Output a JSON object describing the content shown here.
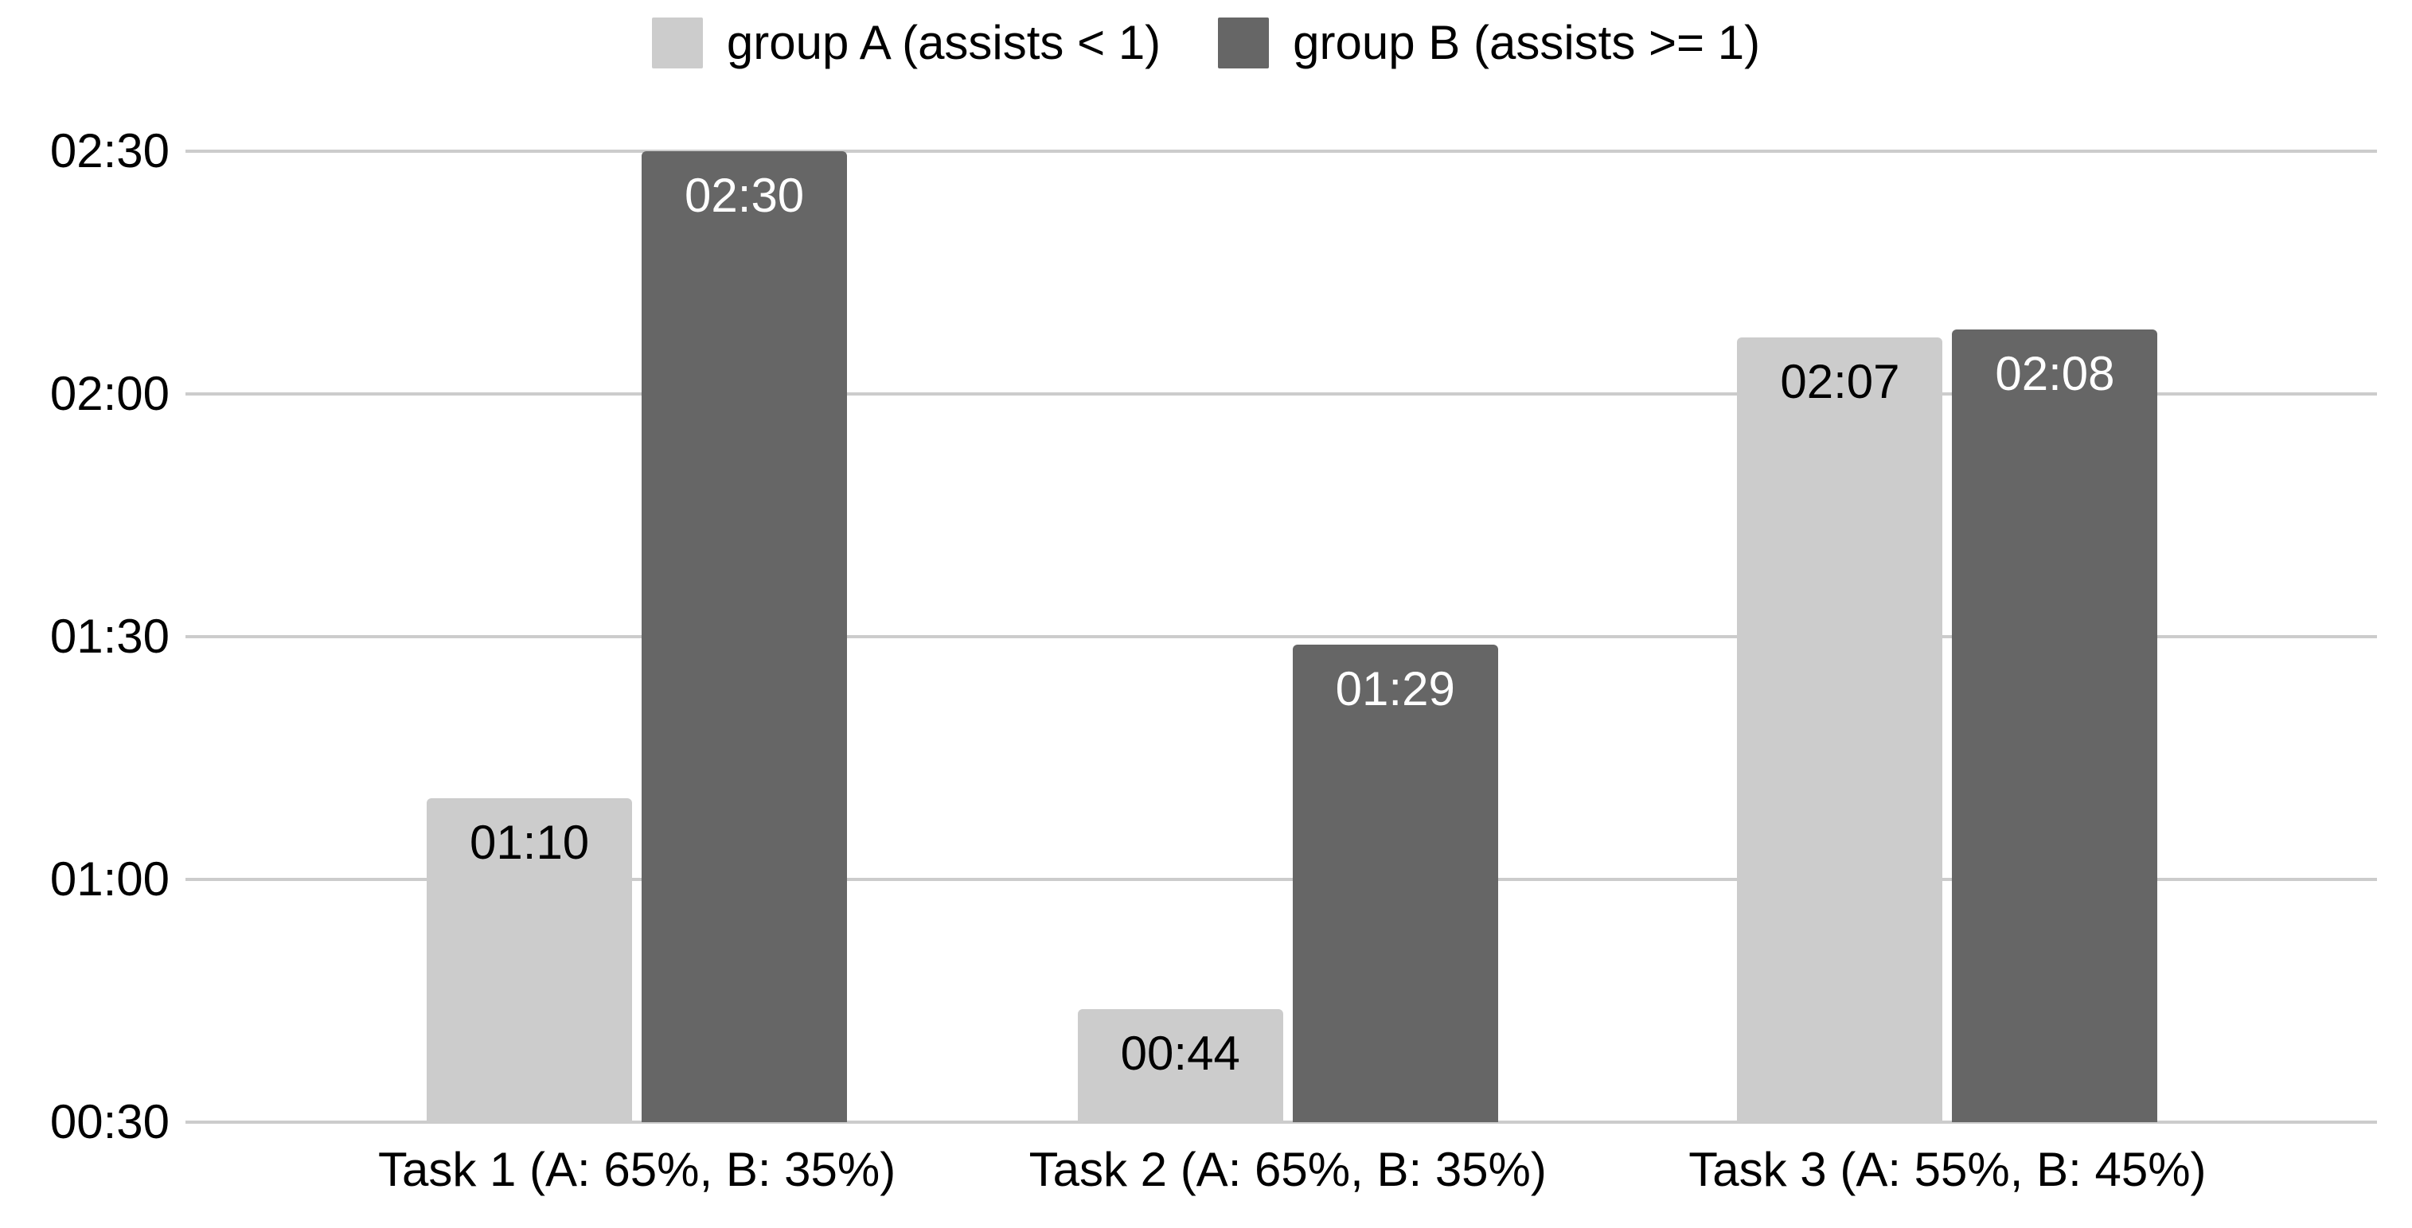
{
  "legend": {
    "items": [
      {
        "label": "group A (assists < 1)",
        "color": "#cccccc"
      },
      {
        "label": "group B (assists >= 1)",
        "color": "#666666"
      }
    ]
  },
  "colors": {
    "background": "#ffffff",
    "gridline": "#cccccc",
    "axis_text": "#000000",
    "series_a": "#cccccc",
    "series_b": "#666666",
    "label_on_light": "#000000",
    "label_on_dark": "#ffffff"
  },
  "chart_data": {
    "type": "bar",
    "title": "",
    "xlabel": "",
    "ylabel": "",
    "grid": true,
    "legend_position": "top",
    "categories": [
      "Task 1 (A: 65%, B: 35%)",
      "Task 2 (A: 65%, B: 35%)",
      "Task 3 (A: 55%, B: 45%)"
    ],
    "series": [
      {
        "name": "group A (assists < 1)",
        "color": "#cccccc",
        "label_color": "#000000",
        "values_mmss": [
          "01:10",
          "00:44",
          "02:07"
        ],
        "values_seconds": [
          70,
          44,
          127
        ]
      },
      {
        "name": "group B (assists >= 1)",
        "color": "#666666",
        "label_color": "#ffffff",
        "values_mmss": [
          "02:30",
          "01:29",
          "02:08"
        ],
        "values_seconds": [
          150,
          89,
          128
        ]
      }
    ],
    "y_axis": {
      "min_seconds": 30,
      "max_seconds": 150,
      "ticks": [
        {
          "label": "00:30",
          "seconds": 30
        },
        {
          "label": "01:00",
          "seconds": 60
        },
        {
          "label": "01:30",
          "seconds": 90
        },
        {
          "label": "02:00",
          "seconds": 120
        },
        {
          "label": "02:30",
          "seconds": 150
        }
      ]
    }
  }
}
